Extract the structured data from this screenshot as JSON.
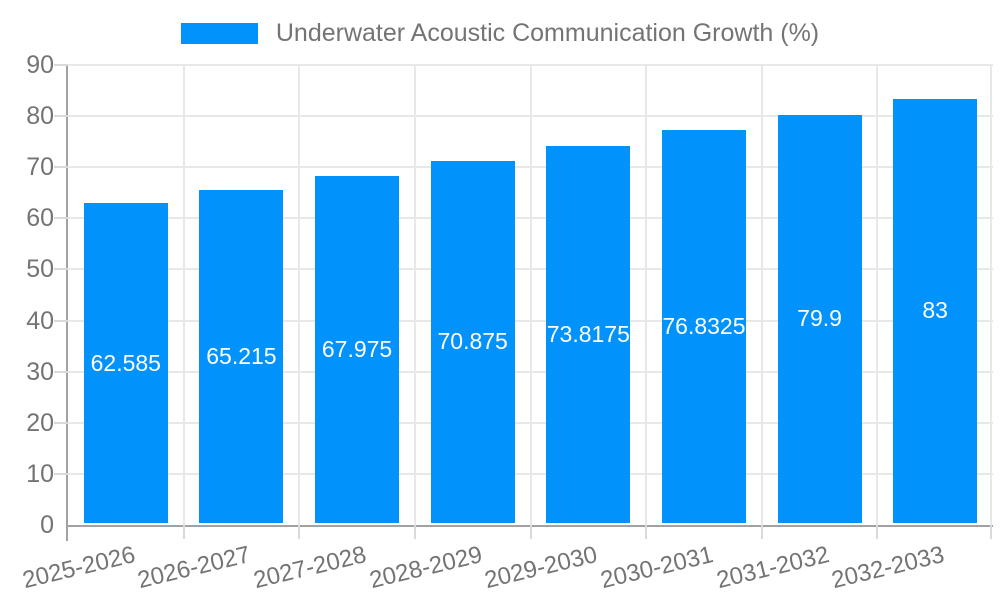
{
  "legend": {
    "label": "Underwater Acoustic Communication Growth (%)"
  },
  "chart_data": {
    "type": "bar",
    "title": "Underwater Acoustic Communication Growth (%)",
    "categories": [
      "2025-2026",
      "2026-2027",
      "2027-2028",
      "2028-2029",
      "2029-2030",
      "2030-2031",
      "2031-2032",
      "2032-2033"
    ],
    "values": [
      62.585,
      65.215,
      67.975,
      70.875,
      73.8175,
      76.8325,
      79.9,
      83
    ],
    "data_labels": [
      "62.585",
      "65.215",
      "67.975",
      "70.875",
      "73.8175",
      "76.8325",
      "79.9",
      "83"
    ],
    "yticks": [
      0,
      10,
      20,
      30,
      40,
      50,
      60,
      70,
      80,
      90
    ],
    "ylim": [
      0,
      90
    ],
    "xlabel": "",
    "ylabel": "",
    "grid": true,
    "legend_position": "top",
    "data_label_position": "center-inside"
  },
  "colors": {
    "bar": "#0292fc",
    "grid": "#e8e8e8",
    "tick": "#d9d9d9",
    "axis": "#a2a2a2",
    "text": "#747474",
    "bar_label_text": "#ffffff",
    "background": "#ffffff"
  }
}
